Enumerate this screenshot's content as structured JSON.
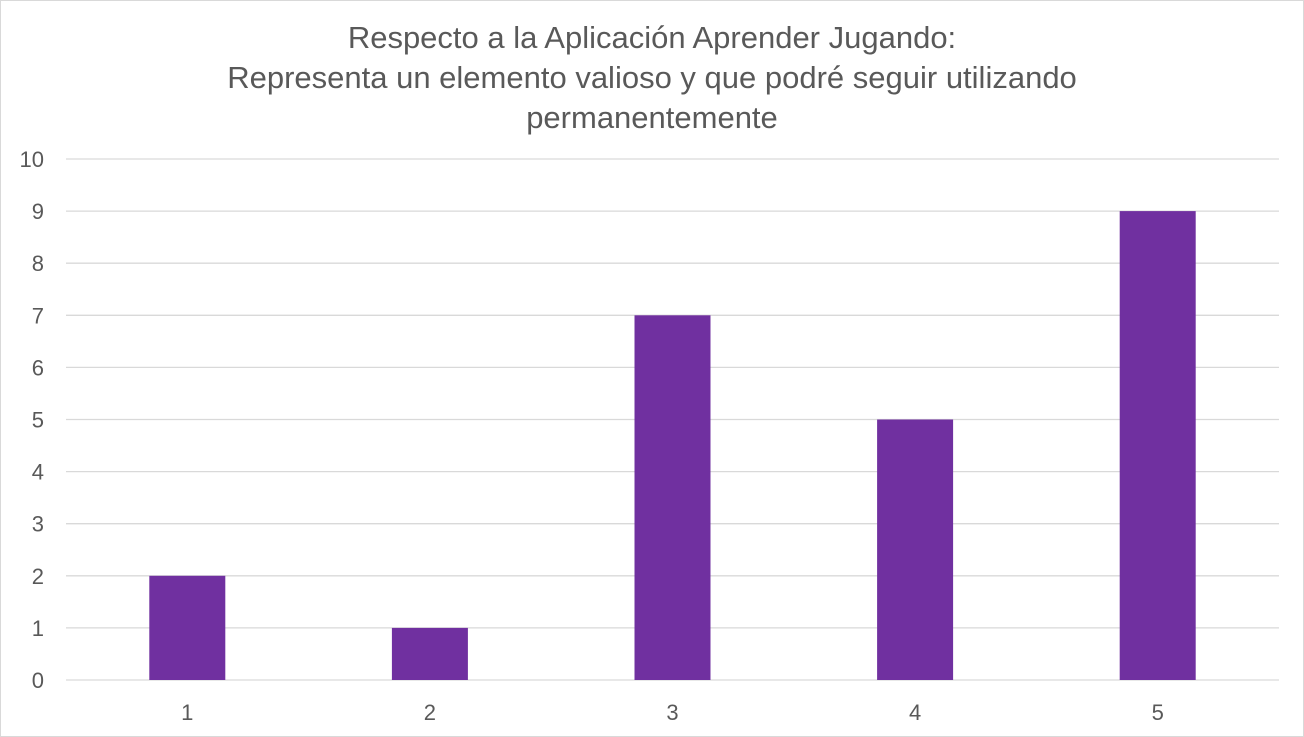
{
  "chart_data": {
    "type": "bar",
    "title_lines": [
      "Respecto a la Aplicación Aprender Jugando:",
      "Representa un elemento valioso y que podré seguir utilizando",
      "permanentemente"
    ],
    "categories": [
      "1",
      "2",
      "3",
      "4",
      "5"
    ],
    "values": [
      2,
      1,
      7,
      5,
      9
    ],
    "ylim": [
      0,
      10
    ],
    "yticks": [
      "0",
      "1",
      "2",
      "3",
      "4",
      "5",
      "6",
      "7",
      "8",
      "9",
      "10"
    ],
    "grid": true,
    "legend": "none",
    "bar_color": "#7030A0",
    "grid_color": "#d9d9d9"
  }
}
